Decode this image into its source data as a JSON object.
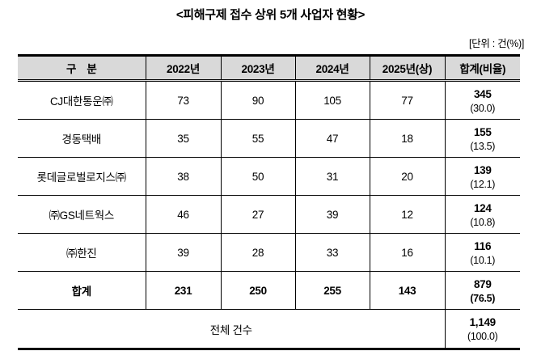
{
  "title": "<피해구제 접수 상위 5개 사업자 현황>",
  "unit_label": "[단위 : 건(%)]",
  "colors": {
    "header_bg": "#d9d9d9",
    "border": "#000000",
    "text": "#000000"
  },
  "table": {
    "headers": {
      "category": "구　분",
      "y2022": "2022년",
      "y2023": "2023년",
      "y2024": "2024년",
      "y2025": "2025년(상)",
      "total": "합계(비율)"
    },
    "rows": [
      {
        "name": "CJ대한통운㈜",
        "y2022": "73",
        "y2023": "90",
        "y2024": "105",
        "y2025": "77",
        "total": "345",
        "pct": "(30.0)"
      },
      {
        "name": "경동택배",
        "y2022": "35",
        "y2023": "55",
        "y2024": "47",
        "y2025": "18",
        "total": "155",
        "pct": "(13.5)"
      },
      {
        "name": "롯데글로벌로지스㈜",
        "y2022": "38",
        "y2023": "50",
        "y2024": "31",
        "y2025": "20",
        "total": "139",
        "pct": "(12.1)"
      },
      {
        "name": "㈜GS네트웍스",
        "y2022": "46",
        "y2023": "27",
        "y2024": "39",
        "y2025": "12",
        "total": "124",
        "pct": "(10.8)"
      },
      {
        "name": "㈜한진",
        "y2022": "39",
        "y2023": "28",
        "y2024": "33",
        "y2025": "16",
        "total": "116",
        "pct": "(10.1)"
      }
    ],
    "sum_row": {
      "name": "합계",
      "y2022": "231",
      "y2023": "250",
      "y2024": "255",
      "y2025": "143",
      "total": "879",
      "pct": "(76.5)"
    },
    "grand_total_row": {
      "name": "전체 건수",
      "total": "1,149",
      "pct": "(100.0)"
    }
  }
}
